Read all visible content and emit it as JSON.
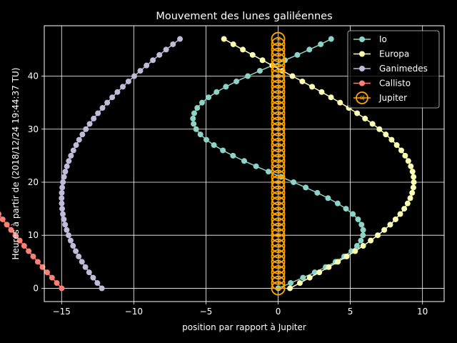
{
  "chart_data": {
    "type": "line",
    "title": "Mouvement des lunes galiléennes",
    "xlabel": "position par rapport à Jupiter",
    "ylabel": "Heures à partir de (2018/12/24 19:44:37 TU)",
    "xlim": [
      -16.2,
      11.5
    ],
    "ylim": [
      -2.5,
      49.5
    ],
    "xticks": [
      -15,
      -10,
      -5,
      0,
      5,
      10
    ],
    "xtick_labels": [
      "−15",
      "−10",
      "−5",
      "0",
      "5",
      "10"
    ],
    "yticks": [
      0,
      10,
      20,
      30,
      40
    ],
    "ytick_labels": [
      "0",
      "10",
      "20",
      "30",
      "40"
    ],
    "grid": true,
    "legend_position": "top-right",
    "background": "#000000",
    "series": [
      {
        "name": "Io",
        "color": "#8dd3c7",
        "model": {
          "kind": "sine",
          "amplitude": 5.9,
          "period_h": 42.46,
          "phase_deg": 0,
          "sign": 1
        },
        "hours": {
          "start": 0,
          "end": 47,
          "step": 1
        }
      },
      {
        "name": "Europa",
        "color": "#feffb3",
        "model": {
          "kind": "sine",
          "amplitude": 9.4,
          "period_h": 85.23,
          "phase_deg": 185,
          "sign": -1
        },
        "hours": {
          "start": 0,
          "end": 47,
          "step": 1
        }
      },
      {
        "name": "Ganimedes",
        "color": "#bfbbd9",
        "model": {
          "kind": "sine",
          "amplitude": 15.0,
          "period_h": 171.7,
          "phase_deg": 234.5,
          "sign": 1
        },
        "hours": {
          "start": 0,
          "end": 47,
          "step": 1
        }
      },
      {
        "name": "Callisto",
        "color": "#fa8174",
        "model": {
          "kind": "sine",
          "amplitude": 26.4,
          "period_h": 400.5,
          "phase_deg": 214.6,
          "sign": 1
        },
        "hours": {
          "start": 0,
          "end": 47,
          "step": 1
        }
      },
      {
        "name": "Jupiter",
        "color": "#ffa500",
        "marker": "jupiter-symbol",
        "model": {
          "kind": "constant",
          "value": 0
        },
        "hours": {
          "start": 0,
          "end": 47,
          "step": 1
        }
      }
    ]
  }
}
